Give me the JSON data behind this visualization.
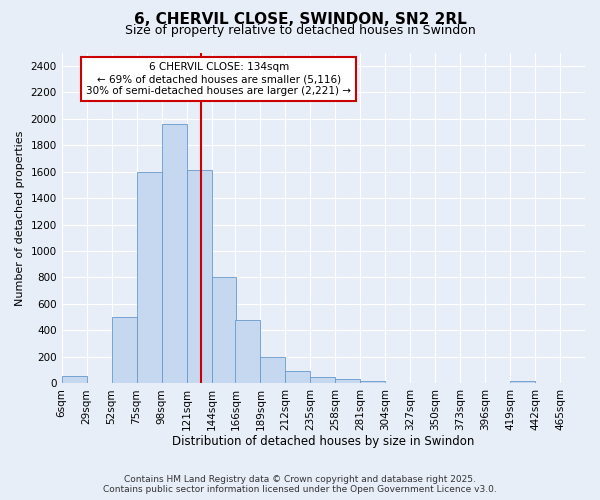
{
  "title": "6, CHERVIL CLOSE, SWINDON, SN2 2RL",
  "subtitle": "Size of property relative to detached houses in Swindon",
  "xlabel": "Distribution of detached houses by size in Swindon",
  "ylabel": "Number of detached properties",
  "footer_line1": "Contains HM Land Registry data © Crown copyright and database right 2025.",
  "footer_line2": "Contains public sector information licensed under the Open Government Licence v3.0.",
  "bar_color": "#c5d8f0",
  "bar_edge_color": "#6699cc",
  "bg_color": "#e8eef8",
  "grid_color": "#ffffff",
  "annotation_box_color": "#cc0000",
  "annotation_text_line1": "6 CHERVIL CLOSE: 134sqm",
  "annotation_text_line2": "← 69% of detached houses are smaller (5,116)",
  "annotation_text_line3": "30% of semi-detached houses are larger (2,221) →",
  "vline_color": "#cc0000",
  "vline_x": 134,
  "categories": [
    "6sqm",
    "29sqm",
    "52sqm",
    "75sqm",
    "98sqm",
    "121sqm",
    "144sqm",
    "166sqm",
    "189sqm",
    "212sqm",
    "235sqm",
    "258sqm",
    "281sqm",
    "304sqm",
    "327sqm",
    "350sqm",
    "373sqm",
    "396sqm",
    "419sqm",
    "442sqm",
    "465sqm"
  ],
  "bin_edges": [
    6,
    29,
    52,
    75,
    98,
    121,
    144,
    166,
    189,
    212,
    235,
    258,
    281,
    304,
    327,
    350,
    373,
    396,
    419,
    442,
    465
  ],
  "bar_heights": [
    55,
    0,
    500,
    1600,
    1960,
    1610,
    800,
    480,
    200,
    95,
    45,
    30,
    15,
    5,
    0,
    0,
    0,
    0,
    20,
    0,
    0
  ],
  "bin_width": 23,
  "ylim": [
    0,
    2500
  ],
  "yticks": [
    0,
    200,
    400,
    600,
    800,
    1000,
    1200,
    1400,
    1600,
    1800,
    2000,
    2200,
    2400
  ],
  "title_fontsize": 11,
  "subtitle_fontsize": 9,
  "tick_fontsize": 7.5,
  "ylabel_fontsize": 8,
  "xlabel_fontsize": 8.5,
  "footer_fontsize": 6.5,
  "annotation_fontsize": 7.5
}
